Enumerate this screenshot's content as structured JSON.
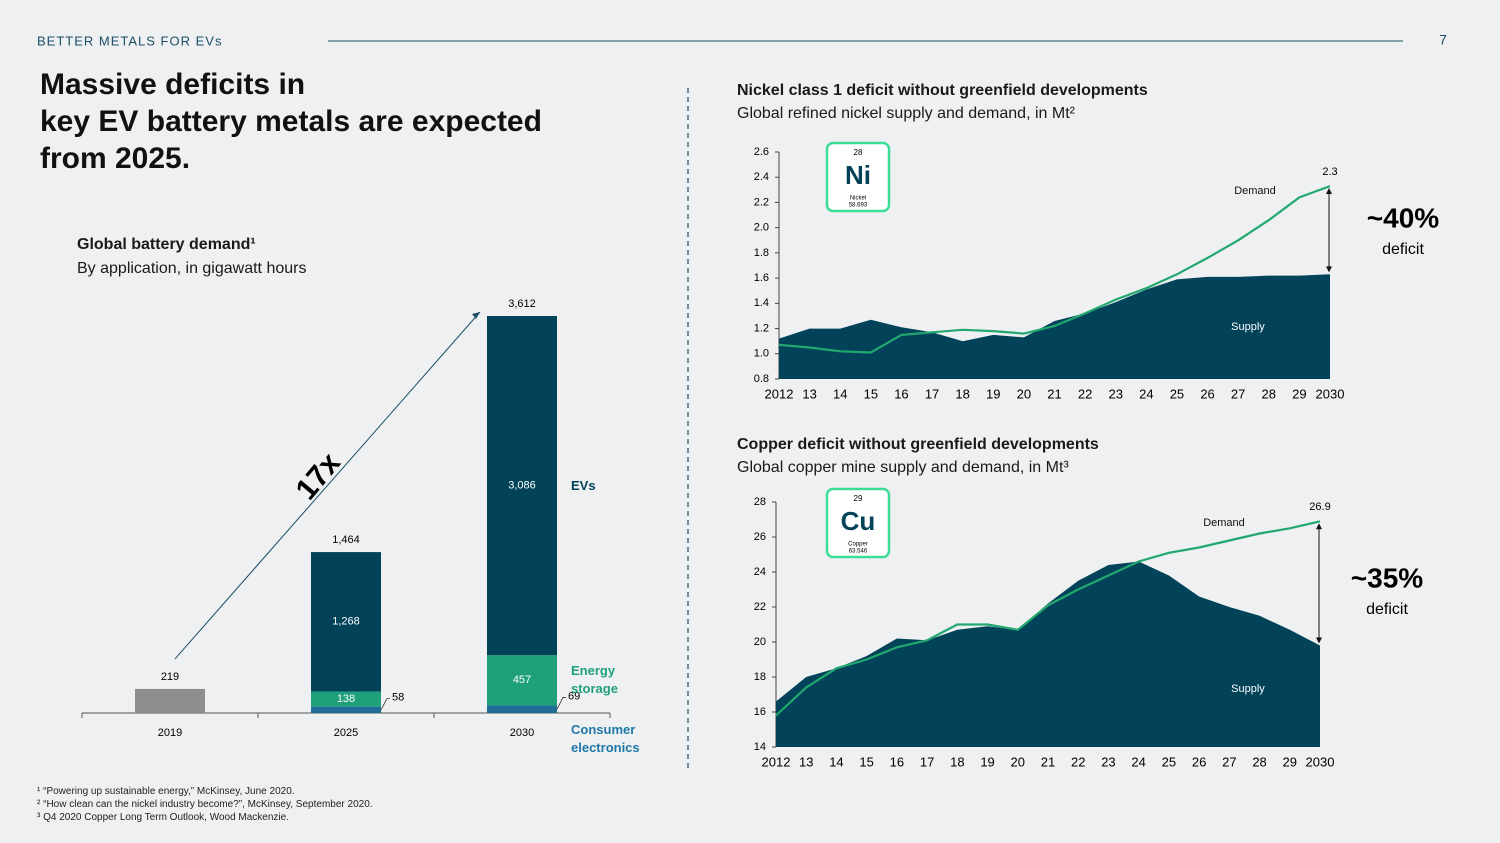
{
  "header": "BETTER METALS FOR EVs",
  "page_number": "7",
  "title": [
    "Massive deficits in",
    "key EV battery metals are expected",
    "from 2025."
  ],
  "footnotes": [
    "¹ “Powering up sustainable energy,” McKinsey, June 2020.",
    "² “How clean can the nickel industry become?”, McKinsey, September 2020.",
    "³ Q4 2020 Copper Long Term Outlook, Wood Mackenzie."
  ],
  "elements": [
    {
      "number": "28",
      "symbol": "Ni",
      "name": "Nickel",
      "mass": "58.693"
    },
    {
      "number": "29",
      "symbol": "Cu",
      "name": "Copper",
      "mass": "63.546"
    }
  ],
  "chart_data": [
    {
      "type": "bar",
      "title": "Global battery demand¹",
      "subtitle": "By application, in gigawatt hours",
      "annotation": "17x",
      "categories": [
        "2019",
        "2025",
        "2030"
      ],
      "totals": [
        219,
        1464,
        3612
      ],
      "totals_labels": [
        "219",
        "1,464",
        "3,612"
      ],
      "series": [
        {
          "color": "#8e8e8e",
          "values": [
            219,
            null,
            null
          ]
        },
        {
          "name": "Consumer electronics",
          "color": "#1f6e96",
          "values": [
            null,
            58,
            69
          ]
        },
        {
          "name": "Energy storage",
          "color": "#1fa07a",
          "values": [
            null,
            138,
            457
          ]
        },
        {
          "name": "EVs",
          "color": "#02435a",
          "values": [
            null,
            1268,
            3086
          ],
          "value_labels": [
            null,
            "1,268",
            "3,086"
          ]
        }
      ]
    },
    {
      "type": "area",
      "title": "Nickel class 1 deficit without greenfield developments",
      "subtitle": "Global refined nickel supply and demand, in Mt²",
      "annotations": [
        "~40%",
        "deficit"
      ],
      "categories": [
        "2012",
        "13",
        "14",
        "15",
        "16",
        "17",
        "18",
        "19",
        "20",
        "21",
        "22",
        "23",
        "24",
        "25",
        "26",
        "27",
        "28",
        "29",
        "2030"
      ],
      "ylim": [
        0.8,
        2.6
      ],
      "yticks": [
        0.8,
        {
          "value": 1,
          "label": "1.0"
        },
        1.2,
        1.4,
        1.6,
        1.8,
        {
          "value": 2,
          "label": "2.0"
        },
        2.2,
        2.4,
        2.6
      ],
      "series": [
        {
          "name": "Supply",
          "kind": "area",
          "color": "#02435a",
          "values": [
            1.12,
            1.2,
            1.2,
            1.27,
            1.21,
            1.17,
            1.1,
            1.15,
            1.13,
            1.26,
            1.32,
            1.41,
            1.51,
            1.59,
            1.61,
            1.61,
            1.62,
            1.62,
            1.63
          ]
        },
        {
          "name": "Demand",
          "kind": "line",
          "color": "#22a86f",
          "values": [
            1.07,
            1.05,
            1.02,
            1.01,
            1.15,
            1.17,
            1.19,
            1.18,
            1.16,
            1.22,
            1.32,
            1.43,
            1.52,
            1.63,
            1.76,
            1.9,
            2.06,
            2.24,
            2.33
          ],
          "value_labels": [
            null,
            null,
            null,
            null,
            null,
            null,
            null,
            null,
            null,
            null,
            null,
            null,
            null,
            null,
            null,
            null,
            null,
            null,
            "2.3"
          ]
        }
      ]
    },
    {
      "type": "area",
      "title": "Copper deficit without greenfield developments",
      "subtitle": "Global copper mine supply and demand, in Mt³",
      "annotations": [
        "~35%",
        "deficit"
      ],
      "categories": [
        "2012",
        "13",
        "14",
        "15",
        "16",
        "17",
        "18",
        "19",
        "20",
        "21",
        "22",
        "23",
        "24",
        "25",
        "26",
        "27",
        "28",
        "29",
        "2030"
      ],
      "ylim": [
        14,
        28
      ],
      "yticks": [
        14,
        16,
        18,
        20,
        22,
        24,
        26,
        28
      ],
      "series": [
        {
          "name": "Supply",
          "kind": "area",
          "color": "#02435a",
          "values": [
            16.6,
            18.0,
            18.5,
            19.2,
            20.2,
            20.1,
            20.7,
            20.9,
            20.7,
            22.2,
            23.5,
            24.4,
            24.6,
            23.8,
            22.6,
            22.0,
            21.5,
            20.7,
            19.8
          ]
        },
        {
          "name": "Demand",
          "kind": "line",
          "color": "#22a86f",
          "values": [
            15.8,
            17.4,
            18.5,
            19.0,
            19.7,
            20.1,
            21.0,
            21.0,
            20.7,
            22.1,
            23.0,
            23.8,
            24.6,
            25.1,
            25.4,
            25.8,
            26.2,
            26.5,
            26.9
          ],
          "value_labels": [
            null,
            null,
            null,
            null,
            null,
            null,
            null,
            null,
            null,
            null,
            null,
            null,
            null,
            null,
            null,
            null,
            null,
            null,
            "26.9"
          ]
        }
      ]
    }
  ]
}
